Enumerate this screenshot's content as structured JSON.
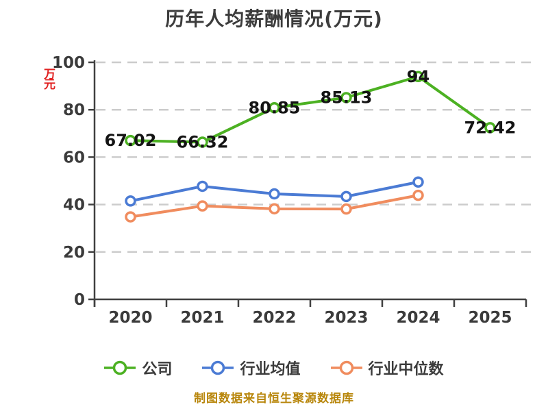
{
  "title": "历年人均薪酬情况(万元)",
  "y_axis": {
    "name": "万元",
    "name_color": "#e12222",
    "ticks": [
      0,
      20,
      40,
      60,
      80,
      100
    ],
    "min": 0,
    "max": 100
  },
  "x_axis": {
    "categories": [
      "2020",
      "2021",
      "2022",
      "2023",
      "2024",
      "2025"
    ]
  },
  "chart_data": {
    "type": "line",
    "title": "历年人均薪酬情况(万元)",
    "ylabel": "万元",
    "ylim": [
      0,
      100
    ],
    "yticks": [
      0,
      20,
      40,
      60,
      80,
      100
    ],
    "grid": "horizontal-dashed",
    "legend_position": "bottom",
    "categories": [
      "2020",
      "2021",
      "2022",
      "2023",
      "2024",
      "2025"
    ],
    "series": [
      {
        "key": "company",
        "name": "公司",
        "color": "#4cb122",
        "values": [
          67.02,
          66.32,
          80.85,
          85.13,
          94,
          72.42
        ],
        "labels": [
          "67.02",
          "66.32",
          "80.85",
          "85.13",
          "94",
          "72.42"
        ]
      },
      {
        "key": "industry-average",
        "name": "行业均值",
        "color": "#4b7bd4",
        "values": [
          41.5,
          47.7,
          44.5,
          43.4,
          49.5
        ]
      },
      {
        "key": "industry-median",
        "name": "行业中位数",
        "color": "#f08c5e",
        "values": [
          34.8,
          39.4,
          38.2,
          38.1,
          43.9
        ]
      }
    ]
  },
  "legend": {
    "items": [
      {
        "label": "公司",
        "color": "#4cb122"
      },
      {
        "label": "行业均值",
        "color": "#4b7bd4"
      },
      {
        "label": "行业中位数",
        "color": "#f08c5e"
      }
    ]
  },
  "caption": {
    "text": "制图数据来自恒生聚源数据库",
    "color": "#b8860b"
  },
  "style": {
    "grid_color": "#cccccc",
    "axis_color": "#404040",
    "tick_label_color": "#3b3b3b",
    "data_label_color": "#141414"
  }
}
